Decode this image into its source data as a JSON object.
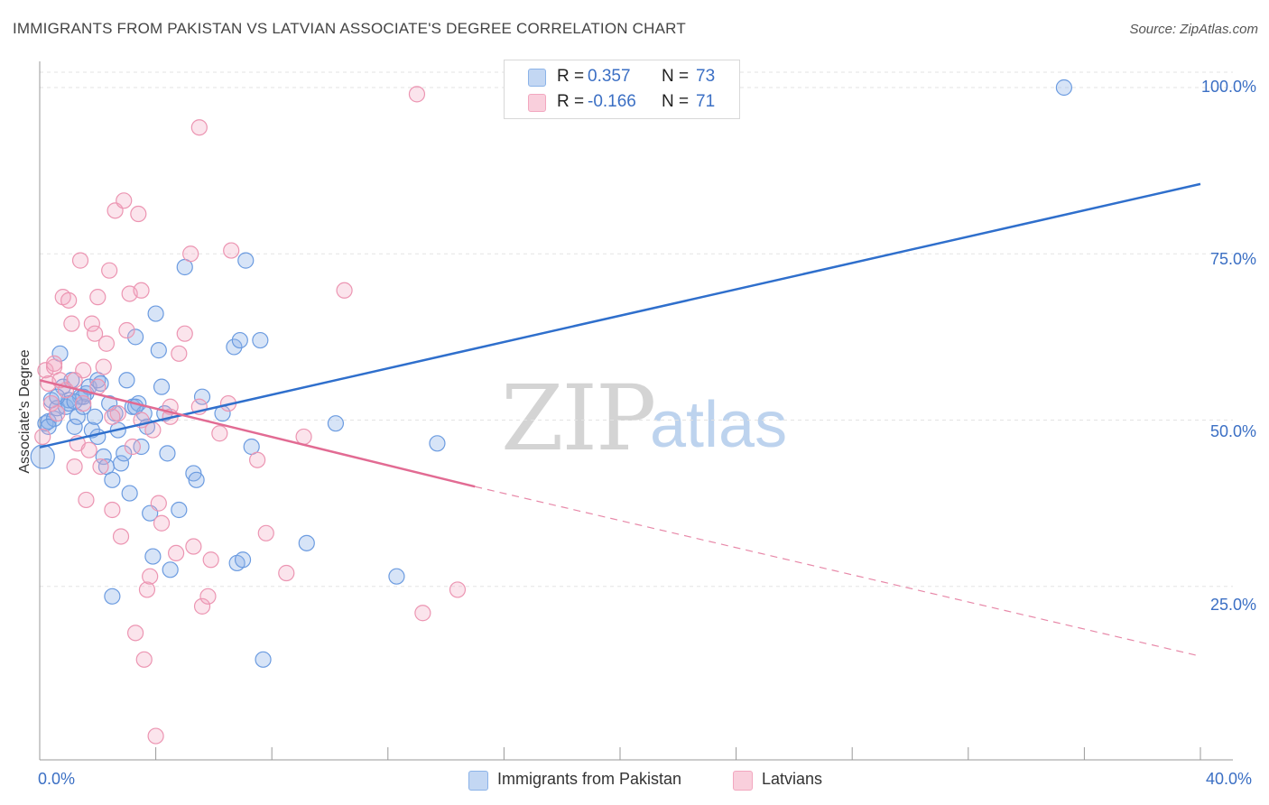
{
  "title": "IMMIGRANTS FROM PAKISTAN VS LATVIAN ASSOCIATE'S DEGREE CORRELATION CHART",
  "source": "Source: ZipAtlas.com",
  "watermark": {
    "zip": "ZIP",
    "atlas": "atlas"
  },
  "colors": {
    "blue": "#8bb3e8",
    "blue_line": "#2f6fcc",
    "pink": "#f2a7bf",
    "pink_line": "#e26b93",
    "grid": "#e3e3e3"
  },
  "legend": {
    "rows": [
      {
        "r_label": "R =",
        "r_value": "0.357",
        "n_label": "N =",
        "n_value": "73"
      },
      {
        "r_label": "R =",
        "r_value": "-0.166",
        "n_label": "N =",
        "n_value": "71"
      }
    ]
  },
  "chart_data": {
    "type": "scatter",
    "title": "IMMIGRANTS FROM PAKISTAN VS LATVIAN ASSOCIATE'S DEGREE CORRELATION CHART",
    "xlabel": "",
    "ylabel": "Associate's Degree",
    "xlim": [
      0,
      40
    ],
    "ylim": [
      0,
      100
    ],
    "x_tick_labels": [
      "0.0%",
      "40.0%"
    ],
    "y_tick_labels": [
      "25.0%",
      "50.0%",
      "75.0%",
      "100.0%"
    ],
    "y_ticks": [
      25,
      50,
      75,
      100
    ],
    "grid": true,
    "legend_position": "top-center",
    "series": [
      {
        "name": "Immigrants from Pakistan",
        "color": "#8bb3e8",
        "trend": {
          "x": [
            0,
            40
          ],
          "y": [
            45.9,
            85.5
          ],
          "style": "solid"
        },
        "points": [
          [
            0.1,
            44.5
          ],
          [
            0.2,
            49.5
          ],
          [
            0.3,
            49.8
          ],
          [
            0.4,
            53.0
          ],
          [
            0.5,
            50.2
          ],
          [
            0.6,
            51.8
          ],
          [
            0.7,
            60.0
          ],
          [
            0.8,
            55.0
          ],
          [
            0.9,
            52.0
          ],
          [
            1.0,
            53.0
          ],
          [
            1.1,
            56.0
          ],
          [
            1.2,
            49.0
          ],
          [
            1.3,
            50.5
          ],
          [
            1.4,
            53.5
          ],
          [
            1.5,
            52.0
          ],
          [
            1.6,
            54.0
          ],
          [
            1.7,
            55.0
          ],
          [
            1.8,
            48.5
          ],
          [
            1.9,
            50.5
          ],
          [
            2.0,
            56.0
          ],
          [
            2.1,
            55.5
          ],
          [
            2.2,
            44.5
          ],
          [
            2.3,
            43.0
          ],
          [
            2.4,
            52.5
          ],
          [
            2.5,
            41.0
          ],
          [
            2.6,
            51.0
          ],
          [
            2.7,
            48.5
          ],
          [
            2.8,
            43.5
          ],
          [
            2.9,
            45.0
          ],
          [
            3.0,
            56.0
          ],
          [
            3.1,
            39.0
          ],
          [
            3.2,
            52.0
          ],
          [
            3.3,
            62.5
          ],
          [
            3.4,
            52.5
          ],
          [
            3.5,
            46.0
          ],
          [
            3.6,
            51.0
          ],
          [
            3.7,
            49.0
          ],
          [
            3.8,
            36.0
          ],
          [
            3.9,
            29.5
          ],
          [
            4.0,
            66.0
          ],
          [
            4.1,
            60.5
          ],
          [
            4.2,
            55.0
          ],
          [
            4.4,
            45.0
          ],
          [
            4.5,
            27.5
          ],
          [
            4.8,
            36.5
          ],
          [
            5.0,
            73.0
          ],
          [
            5.3,
            42.0
          ],
          [
            5.4,
            41.0
          ],
          [
            5.6,
            53.5
          ],
          [
            6.3,
            51.0
          ],
          [
            6.7,
            61.0
          ],
          [
            6.8,
            28.5
          ],
          [
            6.9,
            62.0
          ],
          [
            7.0,
            29.0
          ],
          [
            7.1,
            74.0
          ],
          [
            7.3,
            46.0
          ],
          [
            7.6,
            62.0
          ],
          [
            7.7,
            14.0
          ],
          [
            9.2,
            31.5
          ],
          [
            10.2,
            49.5
          ],
          [
            12.3,
            26.5
          ],
          [
            13.7,
            46.5
          ],
          [
            2.5,
            23.5
          ],
          [
            0.3,
            49.0
          ],
          [
            1.0,
            52.5
          ],
          [
            1.5,
            53.5
          ],
          [
            2.0,
            47.5
          ],
          [
            3.3,
            52.0
          ],
          [
            4.3,
            51.0
          ],
          [
            17.0,
            97.0
          ],
          [
            35.3,
            100.0
          ],
          [
            0.6,
            53.5
          ],
          [
            1.2,
            52.8
          ]
        ]
      },
      {
        "name": "Latvians",
        "color": "#f2a7bf",
        "trend": {
          "x": [
            0,
            15.0
          ],
          "y": [
            56.0,
            40.0
          ],
          "style": "solid"
        },
        "trend_ext": {
          "x": [
            15.0,
            40
          ],
          "y": [
            40.0,
            14.5
          ],
          "style": "dashed"
        },
        "points": [
          [
            0.1,
            47.5
          ],
          [
            0.2,
            57.5
          ],
          [
            0.3,
            55.5
          ],
          [
            0.4,
            52.5
          ],
          [
            0.5,
            58.0
          ],
          [
            0.6,
            51.0
          ],
          [
            0.7,
            56.0
          ],
          [
            0.8,
            68.5
          ],
          [
            0.9,
            54.5
          ],
          [
            1.0,
            68.0
          ],
          [
            1.1,
            64.5
          ],
          [
            1.2,
            43.0
          ],
          [
            1.3,
            46.5
          ],
          [
            1.4,
            74.0
          ],
          [
            1.5,
            57.5
          ],
          [
            1.6,
            38.0
          ],
          [
            1.7,
            45.5
          ],
          [
            1.8,
            64.5
          ],
          [
            1.9,
            63.0
          ],
          [
            2.0,
            68.5
          ],
          [
            2.1,
            43.0
          ],
          [
            2.2,
            58.0
          ],
          [
            2.3,
            61.5
          ],
          [
            2.4,
            72.5
          ],
          [
            2.5,
            36.5
          ],
          [
            2.6,
            81.5
          ],
          [
            2.7,
            51.0
          ],
          [
            2.8,
            32.5
          ],
          [
            2.9,
            83.0
          ],
          [
            3.0,
            63.5
          ],
          [
            3.1,
            69.0
          ],
          [
            3.2,
            46.0
          ],
          [
            3.3,
            18.0
          ],
          [
            3.4,
            81.0
          ],
          [
            3.5,
            69.5
          ],
          [
            3.6,
            14.0
          ],
          [
            3.7,
            24.5
          ],
          [
            3.8,
            26.5
          ],
          [
            3.9,
            48.5
          ],
          [
            4.0,
            2.5
          ],
          [
            4.1,
            37.5
          ],
          [
            4.2,
            34.5
          ],
          [
            4.5,
            52.0
          ],
          [
            4.7,
            30.0
          ],
          [
            4.8,
            60.0
          ],
          [
            5.0,
            63.0
          ],
          [
            5.2,
            75.0
          ],
          [
            5.3,
            31.0
          ],
          [
            5.5,
            94.0
          ],
          [
            5.6,
            22.0
          ],
          [
            5.8,
            23.5
          ],
          [
            5.9,
            29.0
          ],
          [
            6.2,
            48.0
          ],
          [
            6.5,
            52.5
          ],
          [
            6.6,
            75.5
          ],
          [
            7.5,
            44.0
          ],
          [
            7.8,
            33.0
          ],
          [
            8.5,
            27.0
          ],
          [
            9.1,
            47.5
          ],
          [
            10.5,
            69.5
          ],
          [
            13.0,
            99.0
          ],
          [
            13.2,
            21.0
          ],
          [
            14.4,
            24.5
          ],
          [
            1.2,
            56.0
          ],
          [
            2.0,
            55.0
          ],
          [
            3.5,
            50.0
          ],
          [
            4.5,
            50.5
          ],
          [
            5.5,
            52.0
          ],
          [
            0.5,
            58.5
          ],
          [
            1.5,
            52.5
          ],
          [
            2.5,
            50.5
          ]
        ]
      }
    ]
  },
  "legend_bottom": [
    "Immigrants from Pakistan",
    "Latvians"
  ]
}
